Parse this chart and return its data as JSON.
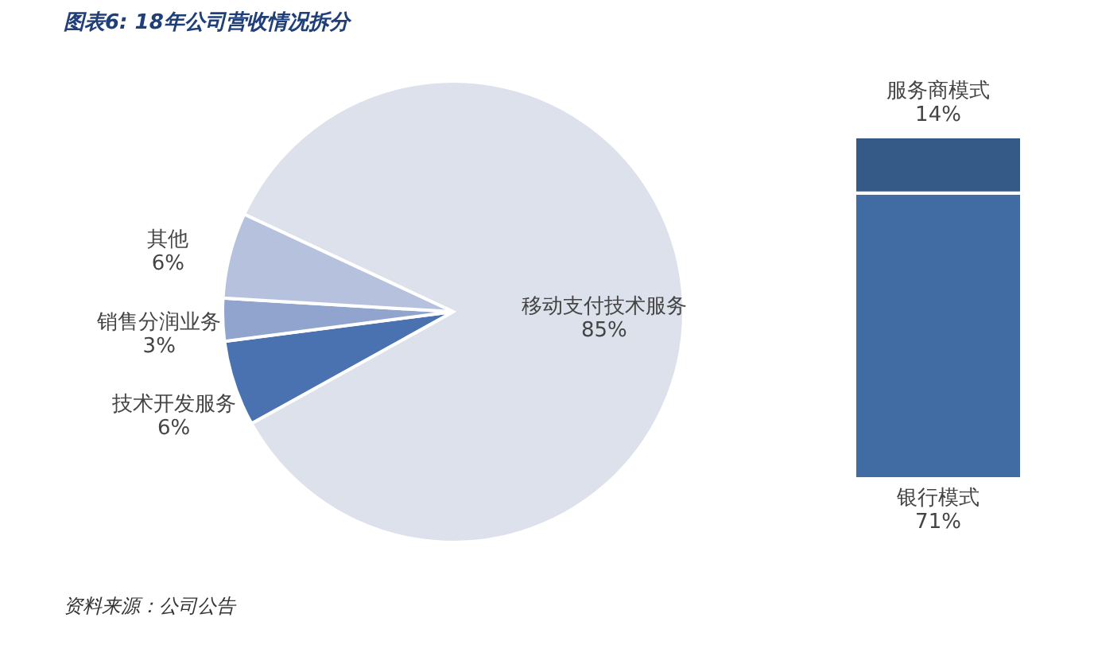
{
  "chart_data": [
    {
      "type": "pie",
      "title": "图表6: 18年公司营收情况拆分",
      "categories": [
        "移动支付技术服务",
        "技术开发服务",
        "销售分润业务",
        "其他"
      ],
      "values": [
        85,
        6,
        3,
        6
      ],
      "colors": [
        "#dde1ec",
        "#4a72b0",
        "#91a4cd",
        "#b6c2dd"
      ],
      "value_labels": [
        "85%",
        "6%",
        "3%",
        "6%"
      ],
      "legend": false,
      "annotations": [
        "资料来源：公司公告"
      ]
    },
    {
      "type": "bar",
      "stacked": true,
      "categories": [
        null
      ],
      "legend": false,
      "series": [
        {
          "name": "银行模式",
          "color": "#416ba3",
          "values": [
            71
          ],
          "value_labels": [
            "71%"
          ]
        },
        {
          "name": "服务商模式",
          "color": "#365a88",
          "values": [
            14
          ],
          "value_labels": [
            "14%"
          ]
        }
      ]
    }
  ]
}
